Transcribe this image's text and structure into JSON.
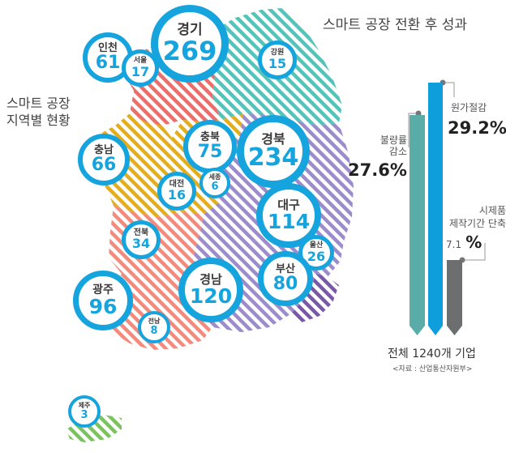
{
  "map_title": "스마트 공장\n지역별 현황",
  "results_title": "스마트 공장 전환 후 성과",
  "regions": [
    {
      "name": "경기",
      "value": "269"
    },
    {
      "name": "인천",
      "value": "61"
    },
    {
      "name": "서울",
      "value": "17"
    },
    {
      "name": "강원",
      "value": "15"
    },
    {
      "name": "충남",
      "value": "66"
    },
    {
      "name": "충북",
      "value": "75"
    },
    {
      "name": "경북",
      "value": "234"
    },
    {
      "name": "대전",
      "value": "16"
    },
    {
      "name": "세종",
      "value": "6"
    },
    {
      "name": "대구",
      "value": "114"
    },
    {
      "name": "전북",
      "value": "34"
    },
    {
      "name": "울산",
      "value": "26"
    },
    {
      "name": "광주",
      "value": "96"
    },
    {
      "name": "경남",
      "value": "120"
    },
    {
      "name": "부산",
      "value": "80"
    },
    {
      "name": "전남",
      "value": "8"
    },
    {
      "name": "제주",
      "value": "3"
    }
  ],
  "results": {
    "defect": {
      "label": "불량률\n감소",
      "value": "27.6%"
    },
    "cost": {
      "label": "원가절감",
      "value": "29.2%"
    },
    "time": {
      "label": "시제품\n제작기간 단축",
      "value": "7.1",
      "unit": "%"
    }
  },
  "footer": {
    "total": "전체 1240개 기업",
    "source": "<자료 : 산업통산자원부>"
  },
  "colors": {
    "accent": "#15a4dd",
    "bar_defect": "#5aaca9",
    "bar_cost": "#0e9edb",
    "bar_time": "#6d6e70",
    "stripe_teal": "#52c4b9",
    "stripe_red": "#ec6d69",
    "stripe_yellow": "#e3ad1b",
    "stripe_purple": "#9d8ccb",
    "stripe_salmon": "#f48a7b",
    "stripe_green": "#7bc35e"
  }
}
